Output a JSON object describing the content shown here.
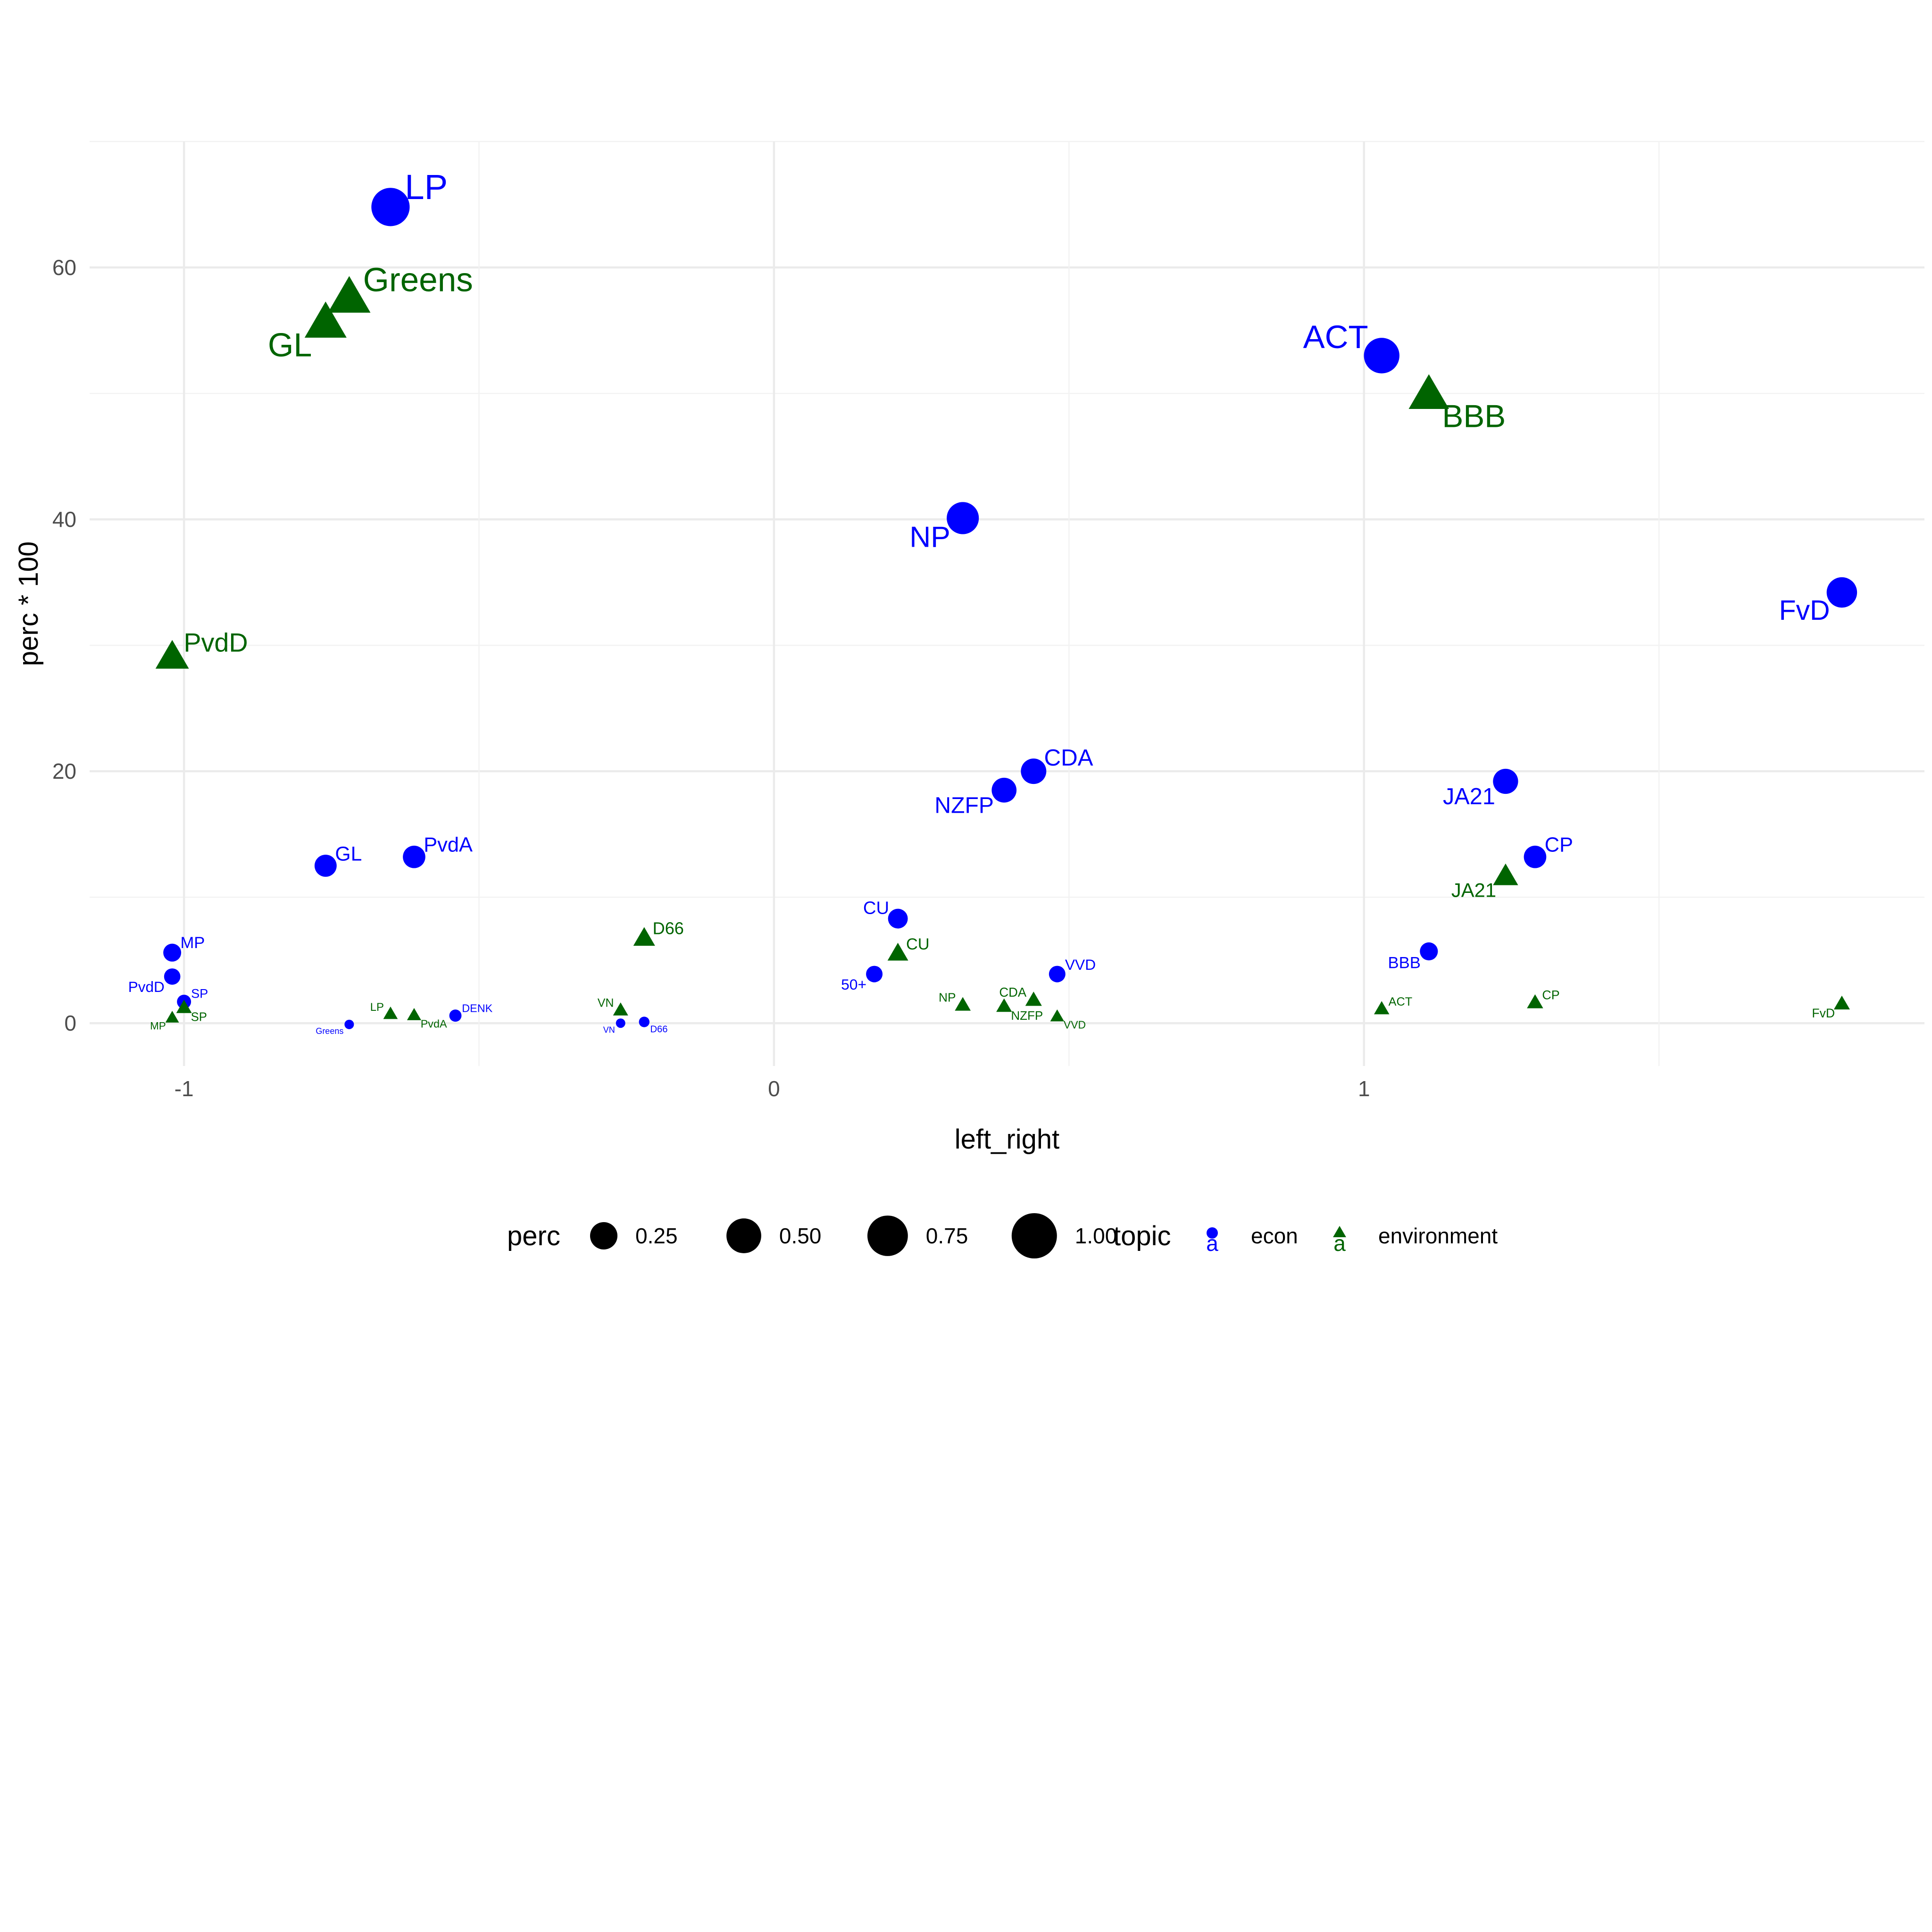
{
  "chart_data": {
    "type": "scatter",
    "xlabel": "left_right",
    "ylabel": "perc * 100",
    "xlim": [
      -1.16,
      1.95
    ],
    "ylim": [
      -3.4,
      70
    ],
    "x_ticks": [
      {
        "value": -1,
        "label": "-1"
      },
      {
        "value": 0,
        "label": "0"
      },
      {
        "value": 1,
        "label": "1"
      }
    ],
    "y_ticks": [
      {
        "value": 0,
        "label": "0"
      },
      {
        "value": 20,
        "label": "20"
      },
      {
        "value": 40,
        "label": "40"
      },
      {
        "value": 60,
        "label": "60"
      }
    ],
    "grid": true,
    "legend": {
      "position": "bottom",
      "size_title": "perc",
      "size_entries": [
        {
          "value": 0.25,
          "label": "0.25"
        },
        {
          "value": 0.5,
          "label": "0.50"
        },
        {
          "value": 0.75,
          "label": "0.75"
        },
        {
          "value": 1.0,
          "label": "1.00"
        }
      ],
      "color_title": "topic",
      "glyph": "a",
      "color_entries": [
        {
          "topic": "econ",
          "label": "econ",
          "color": "#0000ff",
          "shape": "circle"
        },
        {
          "topic": "environment",
          "label": "environment",
          "color": "#006400",
          "shape": "triangle"
        }
      ]
    },
    "series": [
      {
        "name": "econ",
        "color": "#0000ff",
        "shape": "circle",
        "points": [
          {
            "label": "LP",
            "x": -0.65,
            "y": 64.8,
            "anchor": "ne"
          },
          {
            "label": "ACT",
            "x": 1.03,
            "y": 53.0,
            "anchor": "nw"
          },
          {
            "label": "NP",
            "x": 0.32,
            "y": 40.1,
            "anchor": "sw"
          },
          {
            "label": "FvD",
            "x": 1.81,
            "y": 34.2,
            "anchor": "sw"
          },
          {
            "label": "CDA",
            "x": 0.44,
            "y": 20.0,
            "anchor": "ne"
          },
          {
            "label": "JA21",
            "x": 1.24,
            "y": 19.2,
            "anchor": "sw"
          },
          {
            "label": "NZFP",
            "x": 0.39,
            "y": 18.5,
            "anchor": "sw"
          },
          {
            "label": "PvdA",
            "x": -0.61,
            "y": 13.2,
            "anchor": "ne"
          },
          {
            "label": "CP",
            "x": 1.29,
            "y": 13.2,
            "anchor": "ne"
          },
          {
            "label": "GL",
            "x": -0.76,
            "y": 12.5,
            "anchor": "ne"
          },
          {
            "label": "CU",
            "x": 0.21,
            "y": 8.3,
            "anchor": "nw"
          },
          {
            "label": "BBB",
            "x": 1.11,
            "y": 5.7,
            "anchor": "sw"
          },
          {
            "label": "MP",
            "x": -1.02,
            "y": 5.6,
            "anchor": "ne"
          },
          {
            "label": "50+",
            "x": 0.17,
            "y": 3.9,
            "anchor": "sw"
          },
          {
            "label": "VVD",
            "x": 0.48,
            "y": 3.9,
            "anchor": "ne"
          },
          {
            "label": "PvdD",
            "x": -1.02,
            "y": 3.7,
            "anchor": "sw"
          },
          {
            "label": "SP",
            "x": -1.0,
            "y": 1.7,
            "anchor": "ne"
          },
          {
            "label": "DENK",
            "x": -0.54,
            "y": 0.6,
            "anchor": "ne"
          },
          {
            "label": "D66",
            "x": -0.22,
            "y": 0.1,
            "anchor": "se"
          },
          {
            "label": "VN",
            "x": -0.26,
            "y": 0.0,
            "anchor": "sw"
          },
          {
            "label": "Greens",
            "x": -0.72,
            "y": -0.1,
            "anchor": "sw"
          }
        ]
      },
      {
        "name": "environment",
        "color": "#006400",
        "shape": "triangle",
        "points": [
          {
            "label": "Greens",
            "x": -0.72,
            "y": 57.5,
            "anchor": "ne"
          },
          {
            "label": "GL",
            "x": -0.76,
            "y": 55.5,
            "anchor": "sw"
          },
          {
            "label": "BBB",
            "x": 1.11,
            "y": 49.8,
            "anchor": "se"
          },
          {
            "label": "PvdD",
            "x": -1.02,
            "y": 29.0,
            "anchor": "ne"
          },
          {
            "label": "JA21",
            "x": 1.24,
            "y": 11.6,
            "anchor": "sw"
          },
          {
            "label": "D66",
            "x": -0.22,
            "y": 6.7,
            "anchor": "ne"
          },
          {
            "label": "CU",
            "x": 0.21,
            "y": 5.5,
            "anchor": "ne"
          },
          {
            "label": "CDA",
            "x": 0.44,
            "y": 1.8,
            "anchor": "nw"
          },
          {
            "label": "CP",
            "x": 1.29,
            "y": 1.6,
            "anchor": "ne"
          },
          {
            "label": "FvD",
            "x": 1.81,
            "y": 1.5,
            "anchor": "sw"
          },
          {
            "label": "NP",
            "x": 0.32,
            "y": 1.4,
            "anchor": "nw"
          },
          {
            "label": "NZFP",
            "x": 0.39,
            "y": 1.3,
            "anchor": "se"
          },
          {
            "label": "SP",
            "x": -1.0,
            "y": 1.2,
            "anchor": "se"
          },
          {
            "label": "ACT",
            "x": 1.03,
            "y": 1.1,
            "anchor": "ne"
          },
          {
            "label": "VN",
            "x": -0.26,
            "y": 1.0,
            "anchor": "nw"
          },
          {
            "label": "LP",
            "x": -0.65,
            "y": 0.7,
            "anchor": "nw"
          },
          {
            "label": "PvdA",
            "x": -0.61,
            "y": 0.6,
            "anchor": "se"
          },
          {
            "label": "VVD",
            "x": 0.48,
            "y": 0.5,
            "anchor": "se"
          },
          {
            "label": "MP",
            "x": -1.02,
            "y": 0.4,
            "anchor": "sw"
          }
        ]
      }
    ]
  }
}
